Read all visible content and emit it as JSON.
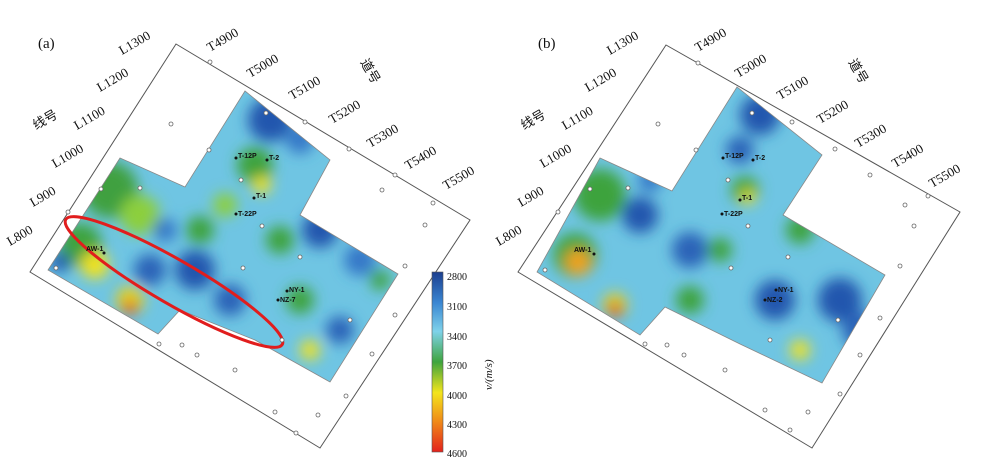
{
  "panels": [
    {
      "label": "(a)",
      "line_axis_title": "线号",
      "trace_axis_title": "道号",
      "lines": [
        "L800",
        "L900",
        "L1000",
        "L1100",
        "L1200",
        "L1300"
      ],
      "traces": [
        "T4900",
        "T5000",
        "T5100",
        "T5200",
        "T5300",
        "T5400",
        "T5500"
      ],
      "wells": [
        "AW-1",
        "T-12P",
        "T-2",
        "T-1",
        "T-22P",
        "NY-1",
        "NZ-7"
      ],
      "highlight": "red ellipse around low-velocity belt"
    },
    {
      "label": "(b)",
      "line_axis_title": "线号",
      "trace_axis_title": "道号",
      "lines": [
        "L800",
        "L900",
        "L1000",
        "L1100",
        "L1200",
        "L1300"
      ],
      "traces": [
        "T4900",
        "T5000",
        "T5100",
        "T5200",
        "T5300",
        "T5400",
        "T5500"
      ],
      "wells": [
        "AW-1",
        "T-12P",
        "T-2",
        "T-1",
        "T-22P",
        "NY-1",
        "NZ-2"
      ]
    }
  ],
  "colorbar": {
    "title": "v/(m/s)",
    "ticks": [
      "2800",
      "3100",
      "3400",
      "3700",
      "4000",
      "4300",
      "4600"
    ],
    "colors": [
      "#1f4e9e",
      "#3c8fd6",
      "#6ec9e6",
      "#3fa63f",
      "#f2e31c",
      "#f08a18",
      "#e3221c"
    ]
  },
  "colors": {
    "highlight": "#e11d1d"
  }
}
